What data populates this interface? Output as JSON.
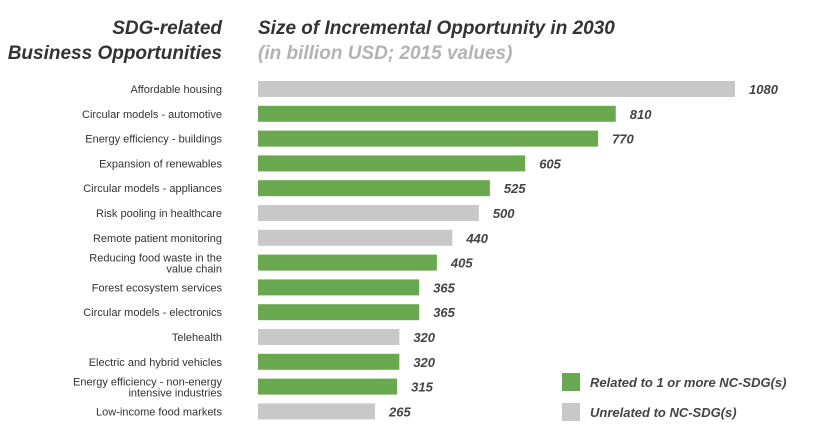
{
  "header": {
    "left_title": [
      "SDG-related",
      "Business Opportunities"
    ],
    "chart_title": "Size of Incremental Opportunity in 2030",
    "chart_subtitle": "(in billion USD; 2015 values)"
  },
  "colors": {
    "related": "#6aa84f",
    "unrelated": "#c8c8c8"
  },
  "chart_data": {
    "type": "bar",
    "orientation": "horizontal",
    "title": "Size of Incremental Opportunity in 2030",
    "subtitle": "(in billion USD; 2015 values)",
    "categories": [
      "Affordable housing",
      "Circular models - automotive",
      "Energy efficiency - buildings",
      "Expansion of renewables",
      "Circular models - appliances",
      "Risk pooling in healthcare",
      "Remote patient monitoring",
      "Reducing food waste in the value chain",
      "Forest ecosystem services",
      "Circular models - electronics",
      "Telehealth",
      "Electric and hybrid vehicles",
      "Energy efficiency - non-energy intensive industries",
      "Low-income food markets"
    ],
    "category_lines": [
      [
        "Affordable housing"
      ],
      [
        "Circular models - automotive"
      ],
      [
        "Energy efficiency - buildings"
      ],
      [
        "Expansion of renewables"
      ],
      [
        "Circular models - appliances"
      ],
      [
        "Risk pooling in healthcare"
      ],
      [
        "Remote patient monitoring"
      ],
      [
        "Reducing food waste in the",
        "value chain"
      ],
      [
        "Forest ecosystem services"
      ],
      [
        "Circular models - electronics"
      ],
      [
        "Telehealth"
      ],
      [
        "Electric and hybrid vehicles"
      ],
      [
        "Energy efficiency - non-energy",
        "intensive industries"
      ],
      [
        "Low-income food markets"
      ]
    ],
    "values": [
      1080,
      810,
      770,
      605,
      525,
      500,
      440,
      405,
      365,
      365,
      320,
      320,
      315,
      265
    ],
    "groups": [
      "unrelated",
      "related",
      "related",
      "related",
      "related",
      "unrelated",
      "unrelated",
      "related",
      "related",
      "related",
      "unrelated",
      "related",
      "related",
      "unrelated"
    ],
    "legend": [
      {
        "key": "related",
        "label": "Related to 1 or more NC-SDG(s)"
      },
      {
        "key": "unrelated",
        "label": "Unrelated to NC-SDG(s)"
      }
    ],
    "legend_position": "bottom-right",
    "xlim": [
      0,
      1080
    ],
    "grid": false
  }
}
